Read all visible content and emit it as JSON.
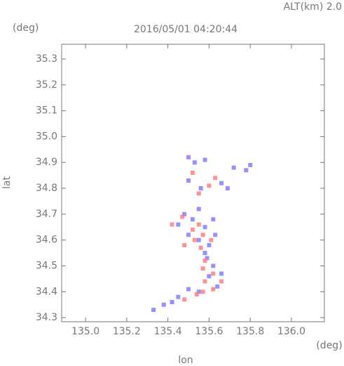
{
  "chart_data": {
    "type": "scatter",
    "title": "2016/05/01 04:20:44",
    "altitude_label": "ALT(km) 2.0",
    "y_unit": "(deg)",
    "x_unit": "(deg)",
    "xlabel": "lon",
    "ylabel": "lat",
    "xlim": [
      134.884,
      136.16
    ],
    "ylim": [
      34.284,
      35.357
    ],
    "xticks": [
      {
        "value": 135,
        "label": "135.0"
      },
      135.2,
      135.4,
      135.6,
      135.8,
      {
        "value": 136,
        "label": "136.0"
      }
    ],
    "yticks": [
      34.3,
      34.4,
      34.5,
      34.6,
      34.7,
      34.8,
      34.9,
      {
        "value": 35,
        "label": "35.0"
      },
      35.1,
      35.2,
      35.3
    ],
    "series": [
      {
        "color": "#8080ff",
        "x": [
          135.5,
          135.53,
          135.58,
          135.72,
          135.78,
          135.5,
          135.56,
          135.66,
          135.69,
          135.8,
          135.45,
          135.48,
          135.52,
          135.55,
          135.58,
          135.62,
          135.63,
          135.5,
          135.55,
          135.6,
          135.58,
          135.62,
          135.6,
          135.66,
          135.64,
          135.55,
          135.5,
          135.45,
          135.42,
          135.38,
          135.33,
          135.59
        ],
        "y": [
          34.92,
          34.9,
          34.91,
          34.88,
          34.87,
          34.83,
          34.8,
          34.82,
          34.8,
          34.89,
          34.66,
          34.7,
          34.68,
          34.72,
          34.65,
          34.68,
          34.62,
          34.62,
          34.6,
          34.58,
          34.55,
          34.5,
          34.46,
          34.47,
          34.42,
          34.4,
          34.41,
          34.38,
          34.36,
          34.35,
          34.33,
          34.53
        ]
      },
      {
        "color": "#ff8080",
        "x": [
          135.52,
          135.6,
          135.63,
          135.55,
          135.47,
          135.52,
          135.55,
          135.57,
          135.53,
          135.56,
          135.58,
          135.57,
          135.62,
          135.58,
          135.62,
          135.57,
          135.54,
          135.48,
          135.66,
          135.42,
          135.48,
          135.61
        ],
        "y": [
          34.86,
          34.81,
          34.84,
          34.78,
          34.69,
          34.64,
          34.66,
          34.62,
          34.6,
          34.57,
          34.52,
          34.49,
          34.47,
          34.44,
          34.41,
          34.4,
          34.39,
          34.37,
          34.44,
          34.66,
          34.58,
          34.6
        ]
      }
    ]
  }
}
